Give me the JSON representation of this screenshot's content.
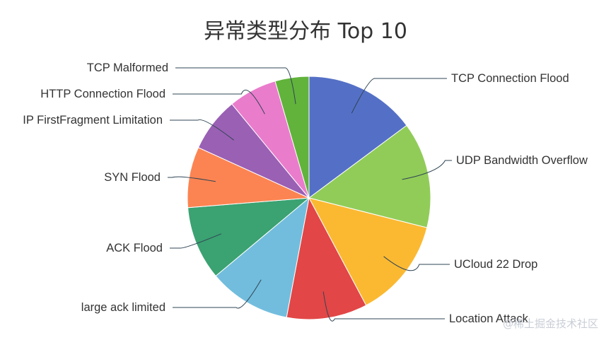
{
  "chart_data": {
    "type": "pie",
    "title": "异常类型分布 Top 10",
    "legend": "none",
    "slices": [
      {
        "label": "TCP Connection Flood",
        "value": 14.5,
        "color": "#5470c6"
      },
      {
        "label": "UDP Bandwidth Overflow",
        "value": 13.8,
        "color": "#91cc59"
      },
      {
        "label": "UCloud 22 Drop",
        "value": 13.0,
        "color": "#fbb932"
      },
      {
        "label": "Location Attack",
        "value": 10.5,
        "color": "#e24646"
      },
      {
        "label": "large ack limited",
        "value": 10.7,
        "color": "#72bddd"
      },
      {
        "label": "ACK Flood",
        "value": 9.6,
        "color": "#3ba272"
      },
      {
        "label": "SYN Flood",
        "value": 7.9,
        "color": "#fc8452"
      },
      {
        "label": "IP FirstFragment Limitation",
        "value": 7.1,
        "color": "#9a60b4"
      },
      {
        "label": "HTTP Connection Flood",
        "value": 6.3,
        "color": "#ea7ccc"
      },
      {
        "label": "TCP Malformed",
        "value": 4.4,
        "color": "#61b33b"
      }
    ]
  },
  "watermark": "@稀土掘金技术社区"
}
